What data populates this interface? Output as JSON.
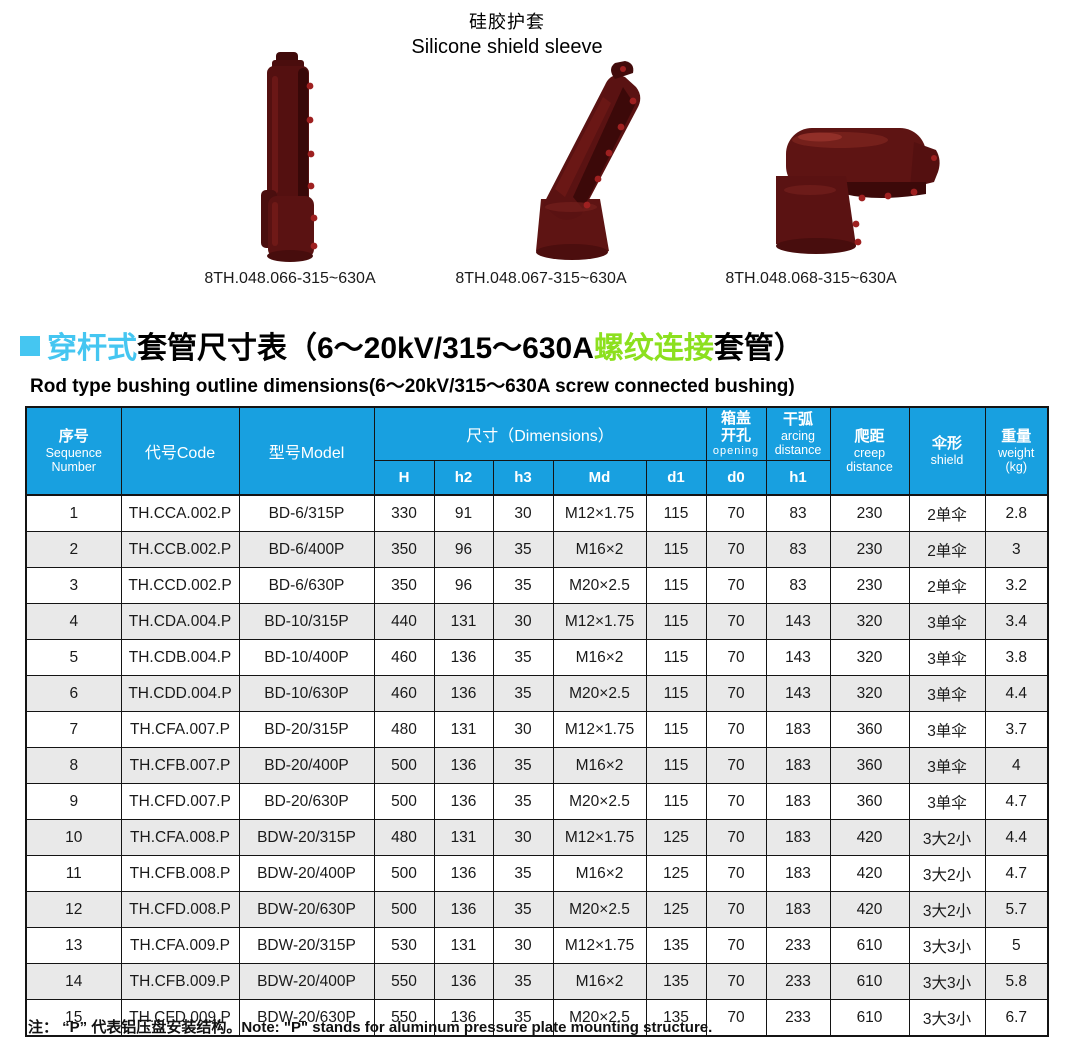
{
  "colors": {
    "header_blue": "#18a0e0",
    "title_cyan": "#45c6f1",
    "title_green": "#8ce01e",
    "row_alt_gray": "#e9e9e9",
    "product_maroon": "#5a1212"
  },
  "top": {
    "title_zh": "硅胶护套",
    "title_en": "Silicone shield sleeve"
  },
  "products": [
    {
      "icon": "straight-sleeve",
      "caption": "8TH.048.066-315~630A"
    },
    {
      "icon": "angled-sleeve",
      "caption": "8TH.048.067-315~630A"
    },
    {
      "icon": "elbow-sleeve",
      "caption": "8TH.048.068-315~630A"
    }
  ],
  "section": {
    "title_zh_cyan": "穿杆式",
    "title_black_1": "套管尺寸表（6～20kV/315～630A",
    "title_zh_green": "螺纹连接",
    "title_black_2": "套管）",
    "subtitle_en": "Rod type bushing outline dimensions(6～20kV/315～630A screw connected bushing)"
  },
  "table": {
    "header": {
      "seq_zh": "序号",
      "seq_en": "Sequence\nNumber",
      "code": "代号Code",
      "model": "型号Model",
      "dimensions": "尺寸（Dimensions）",
      "opening_zh": "箱盖\n开孔",
      "opening_en": "opening",
      "arcing_zh": "干弧",
      "arcing_en": "arcing\ndistance",
      "creep_zh": "爬距",
      "creep_en": "creep\ndistance",
      "shield_zh": "伞形",
      "shield_en": "shield",
      "weight_zh": "重量",
      "weight_en": "weight\n(kg)"
    },
    "sub_headers": [
      "H",
      "h2",
      "h3",
      "Md",
      "d1",
      "d0",
      "h1"
    ],
    "column_keys": [
      "seq",
      "code",
      "model",
      "H",
      "h2",
      "h3",
      "Md",
      "d1",
      "d0",
      "h1",
      "creep",
      "shield",
      "weight"
    ],
    "rows": [
      [
        "1",
        "TH.CCA.002.P",
        "BD-6/315P",
        "330",
        "91",
        "30",
        "M12×1.75",
        "115",
        "70",
        "83",
        "230",
        "2单伞",
        "2.8"
      ],
      [
        "2",
        "TH.CCB.002.P",
        "BD-6/400P",
        "350",
        "96",
        "35",
        "M16×2",
        "115",
        "70",
        "83",
        "230",
        "2单伞",
        "3"
      ],
      [
        "3",
        "TH.CCD.002.P",
        "BD-6/630P",
        "350",
        "96",
        "35",
        "M20×2.5",
        "115",
        "70",
        "83",
        "230",
        "2单伞",
        "3.2"
      ],
      [
        "4",
        "TH.CDA.004.P",
        "BD-10/315P",
        "440",
        "131",
        "30",
        "M12×1.75",
        "115",
        "70",
        "143",
        "320",
        "3单伞",
        "3.4"
      ],
      [
        "5",
        "TH.CDB.004.P",
        "BD-10/400P",
        "460",
        "136",
        "35",
        "M16×2",
        "115",
        "70",
        "143",
        "320",
        "3单伞",
        "3.8"
      ],
      [
        "6",
        "TH.CDD.004.P",
        "BD-10/630P",
        "460",
        "136",
        "35",
        "M20×2.5",
        "115",
        "70",
        "143",
        "320",
        "3单伞",
        "4.4"
      ],
      [
        "7",
        "TH.CFA.007.P",
        "BD-20/315P",
        "480",
        "131",
        "30",
        "M12×1.75",
        "115",
        "70",
        "183",
        "360",
        "3单伞",
        "3.7"
      ],
      [
        "8",
        "TH.CFB.007.P",
        "BD-20/400P",
        "500",
        "136",
        "35",
        "M16×2",
        "115",
        "70",
        "183",
        "360",
        "3单伞",
        "4"
      ],
      [
        "9",
        "TH.CFD.007.P",
        "BD-20/630P",
        "500",
        "136",
        "35",
        "M20×2.5",
        "115",
        "70",
        "183",
        "360",
        "3单伞",
        "4.7"
      ],
      [
        "10",
        "TH.CFA.008.P",
        "BDW-20/315P",
        "480",
        "131",
        "30",
        "M12×1.75",
        "125",
        "70",
        "183",
        "420",
        "3大2小",
        "4.4"
      ],
      [
        "11",
        "TH.CFB.008.P",
        "BDW-20/400P",
        "500",
        "136",
        "35",
        "M16×2",
        "125",
        "70",
        "183",
        "420",
        "3大2小",
        "4.7"
      ],
      [
        "12",
        "TH.CFD.008.P",
        "BDW-20/630P",
        "500",
        "136",
        "35",
        "M20×2.5",
        "125",
        "70",
        "183",
        "420",
        "3大2小",
        "5.7"
      ],
      [
        "13",
        "TH.CFA.009.P",
        "BDW-20/315P",
        "530",
        "131",
        "30",
        "M12×1.75",
        "135",
        "70",
        "233",
        "610",
        "3大3小",
        "5"
      ],
      [
        "14",
        "TH.CFB.009.P",
        "BDW-20/400P",
        "550",
        "136",
        "35",
        "M16×2",
        "135",
        "70",
        "233",
        "610",
        "3大3小",
        "5.8"
      ],
      [
        "15",
        "TH.CFD.009.P",
        "BDW-20/630P",
        "550",
        "136",
        "35",
        "M20×2.5",
        "135",
        "70",
        "233",
        "610",
        "3大3小",
        "6.7"
      ]
    ]
  },
  "note": "注： “P” 代表铝压盘安装结构。Note: \"P\" stands for aluminum pressure plate mounting structure."
}
